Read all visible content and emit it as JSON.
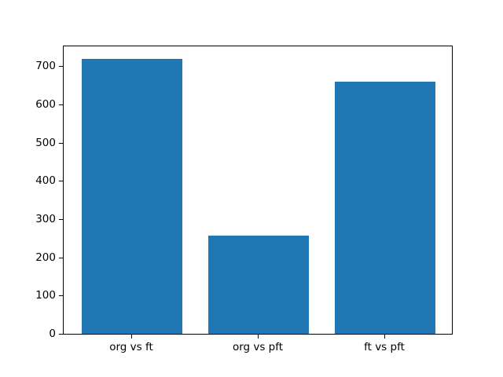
{
  "chart_data": {
    "type": "bar",
    "title": "",
    "xlabel": "",
    "ylabel": "",
    "categories": [
      "org vs ft",
      "org vs pft",
      "ft vs pft"
    ],
    "values": [
      720,
      257,
      660
    ],
    "ylim": [
      0,
      756
    ],
    "yticks": [
      0,
      100,
      200,
      300,
      400,
      500,
      600,
      700
    ],
    "grid": false,
    "legend": false,
    "bar_width_fraction": 0.8,
    "x_edge_margin_units": 0.54,
    "colors": {
      "bar": "#1f77b4",
      "text": "#000000",
      "spine": "#000000",
      "background": "#ffffff"
    }
  }
}
